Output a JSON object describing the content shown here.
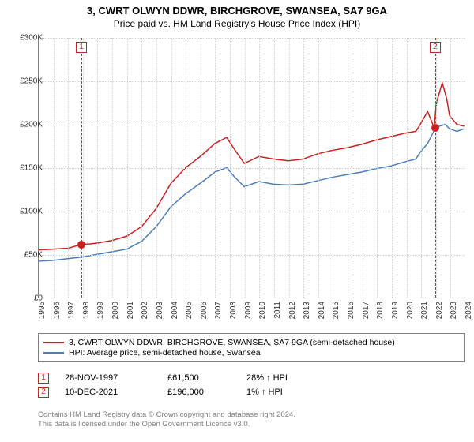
{
  "title": "3, CWRT OLWYN DDWR, BIRCHGROVE, SWANSEA, SA7 9GA",
  "subtitle": "Price paid vs. HM Land Registry's House Price Index (HPI)",
  "chart": {
    "type": "line",
    "background_color": "#ffffff",
    "grid_color": "#cccccc",
    "axis_color": "#808080",
    "x": {
      "min": 1995,
      "max": 2024,
      "tick_step": 1
    },
    "y": {
      "min": 0,
      "max": 300000,
      "tick_step": 50000,
      "tick_prefix": "£",
      "tick_format": "K"
    },
    "series": [
      {
        "name": "3, CWRT OLWYN DDWR, BIRCHGROVE, SWANSEA, SA7 9GA (semi-detached house)",
        "color": "#cb2020",
        "line_width": 1.5,
        "data": [
          [
            1995,
            55000
          ],
          [
            1996,
            56000
          ],
          [
            1997,
            57000
          ],
          [
            1997.9,
            61500
          ],
          [
            1998.5,
            62000
          ],
          [
            1999,
            63000
          ],
          [
            2000,
            66000
          ],
          [
            2001,
            71000
          ],
          [
            2002,
            82000
          ],
          [
            2003,
            103000
          ],
          [
            2004,
            132000
          ],
          [
            2005,
            150000
          ],
          [
            2006,
            163000
          ],
          [
            2007,
            178000
          ],
          [
            2007.8,
            185000
          ],
          [
            2008.3,
            172000
          ],
          [
            2009,
            155000
          ],
          [
            2010,
            163000
          ],
          [
            2011,
            160000
          ],
          [
            2012,
            158000
          ],
          [
            2013,
            160000
          ],
          [
            2014,
            166000
          ],
          [
            2015,
            170000
          ],
          [
            2016,
            173000
          ],
          [
            2017,
            177000
          ],
          [
            2018,
            182000
          ],
          [
            2019,
            186000
          ],
          [
            2020,
            190000
          ],
          [
            2020.7,
            192000
          ],
          [
            2021,
            200000
          ],
          [
            2021.5,
            215000
          ],
          [
            2021.95,
            196000
          ],
          [
            2022.1,
            225000
          ],
          [
            2022.5,
            248000
          ],
          [
            2022.8,
            230000
          ],
          [
            2023,
            210000
          ],
          [
            2023.5,
            200000
          ],
          [
            2024,
            198000
          ]
        ]
      },
      {
        "name": "HPI: Average price, semi-detached house, Swansea",
        "color": "#4a7ebb",
        "line_width": 1.5,
        "data": [
          [
            1995,
            42000
          ],
          [
            1996,
            43000
          ],
          [
            1997,
            45000
          ],
          [
            1998,
            47000
          ],
          [
            1999,
            50000
          ],
          [
            2000,
            53000
          ],
          [
            2001,
            56000
          ],
          [
            2002,
            65000
          ],
          [
            2003,
            82000
          ],
          [
            2004,
            105000
          ],
          [
            2005,
            120000
          ],
          [
            2006,
            132000
          ],
          [
            2007,
            145000
          ],
          [
            2007.8,
            150000
          ],
          [
            2008.3,
            140000
          ],
          [
            2009,
            128000
          ],
          [
            2010,
            134000
          ],
          [
            2011,
            131000
          ],
          [
            2012,
            130000
          ],
          [
            2013,
            131000
          ],
          [
            2014,
            135000
          ],
          [
            2015,
            139000
          ],
          [
            2016,
            142000
          ],
          [
            2017,
            145000
          ],
          [
            2018,
            149000
          ],
          [
            2019,
            152000
          ],
          [
            2020,
            157000
          ],
          [
            2020.7,
            160000
          ],
          [
            2021,
            168000
          ],
          [
            2021.5,
            178000
          ],
          [
            2021.95,
            193000
          ],
          [
            2022.3,
            198000
          ],
          [
            2022.7,
            200000
          ],
          [
            2023,
            195000
          ],
          [
            2023.5,
            192000
          ],
          [
            2024,
            195000
          ]
        ]
      }
    ],
    "sale_markers": [
      {
        "id": "1",
        "x": 1997.9,
        "y": 61500,
        "date": "28-NOV-1997",
        "price": "£61,500",
        "delta": "28% ↑ HPI"
      },
      {
        "id": "2",
        "x": 2021.95,
        "y": 196000,
        "date": "10-DEC-2021",
        "price": "£196,000",
        "delta": "1% ↑ HPI"
      }
    ]
  },
  "legend_items": [
    {
      "color": "#cb2020",
      "label": "3, CWRT OLWYN DDWR, BIRCHGROVE, SWANSEA, SA7 9GA (semi-detached house)"
    },
    {
      "color": "#4a7ebb",
      "label": "HPI: Average price, semi-detached house, Swansea"
    }
  ],
  "attribution": "Contains HM Land Registry data © Crown copyright and database right 2024.\nThis data is licensed under the Open Government Licence v3.0.",
  "fonts": {
    "title": 13,
    "subtitle": 12,
    "axis": 10,
    "legend": 10.5,
    "sales": 11,
    "attrib": 9.5
  }
}
